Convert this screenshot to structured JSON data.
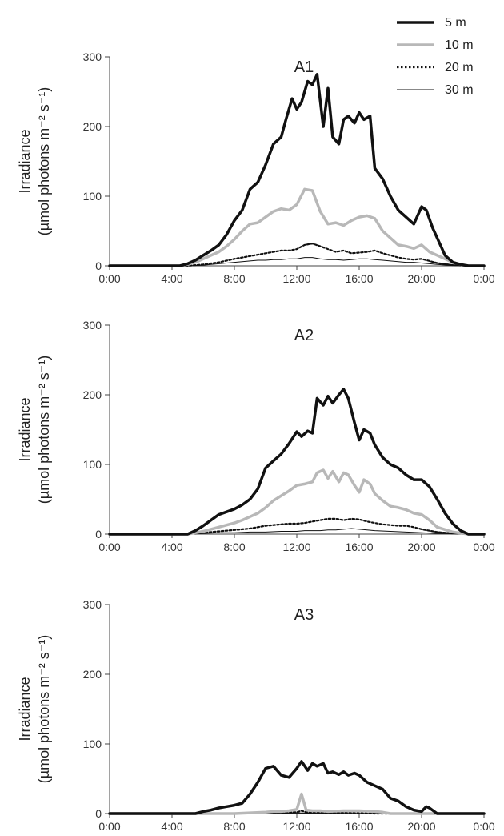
{
  "legend": [
    {
      "label": "5 m",
      "color": "#111111",
      "width": 3.5,
      "dash": ""
    },
    {
      "label": "10 m",
      "color": "#b8b8b8",
      "width": 3.5,
      "dash": ""
    },
    {
      "label": "20 m",
      "color": "#111111",
      "width": 2.2,
      "dash": "2.5,2.5"
    },
    {
      "label": "30 m",
      "color": "#111111",
      "width": 1.0,
      "dash": ""
    }
  ],
  "chart_data": [
    {
      "type": "line",
      "title": "A1",
      "ylabel": [
        "Irradiance",
        "(µmol photons  m⁻² s⁻¹)"
      ],
      "ylim": [
        0,
        300
      ],
      "yticks": [
        "0",
        "100",
        "200",
        "300"
      ],
      "xlim": [
        0,
        24
      ],
      "xticks": [
        "0:00",
        "4:00",
        "8:00",
        "12:00",
        "16:00",
        "20:00",
        "0:00"
      ],
      "series": [
        {
          "name": "5 m",
          "x": [
            0,
            4.5,
            5,
            5.5,
            6,
            6.5,
            7,
            7.5,
            8,
            8.5,
            9,
            9.5,
            10,
            10.5,
            11,
            11.3,
            11.7,
            12,
            12.3,
            12.7,
            13,
            13.3,
            13.7,
            14,
            14.3,
            14.7,
            15,
            15.3,
            15.7,
            16,
            16.3,
            16.7,
            17,
            17.5,
            18,
            18.5,
            19,
            19.5,
            20,
            20.3,
            20.7,
            21,
            21.5,
            22,
            22.5,
            23,
            24
          ],
          "y": [
            0,
            0,
            3,
            8,
            15,
            22,
            30,
            45,
            65,
            80,
            110,
            120,
            145,
            175,
            185,
            210,
            240,
            225,
            235,
            265,
            260,
            275,
            200,
            255,
            185,
            175,
            210,
            215,
            205,
            220,
            210,
            215,
            140,
            125,
            100,
            80,
            70,
            60,
            85,
            80,
            55,
            40,
            15,
            5,
            2,
            0,
            0
          ]
        },
        {
          "name": "10 m",
          "x": [
            0,
            4.5,
            5,
            5.5,
            6,
            6.5,
            7,
            7.5,
            8,
            8.5,
            9,
            9.5,
            10,
            10.5,
            11,
            11.5,
            12,
            12.5,
            13,
            13.5,
            14,
            14.5,
            15,
            15.5,
            16,
            16.5,
            17,
            17.5,
            18,
            18.5,
            19,
            19.5,
            20,
            20.5,
            21,
            21.5,
            22,
            22.5,
            23,
            24
          ],
          "y": [
            0,
            0,
            2,
            5,
            10,
            15,
            20,
            28,
            38,
            50,
            60,
            62,
            70,
            78,
            82,
            80,
            88,
            110,
            108,
            78,
            60,
            62,
            58,
            65,
            70,
            72,
            68,
            50,
            40,
            30,
            28,
            25,
            30,
            20,
            15,
            10,
            5,
            2,
            0,
            0
          ]
        },
        {
          "name": "20 m",
          "x": [
            0,
            5,
            6,
            7,
            8,
            8.5,
            9,
            9.5,
            10,
            10.5,
            11,
            11.5,
            12,
            12.5,
            13,
            13.5,
            14,
            14.5,
            15,
            15.5,
            16,
            16.5,
            17,
            17.5,
            18,
            18.5,
            19,
            19.5,
            20,
            20.5,
            21,
            22,
            23,
            24
          ],
          "y": [
            0,
            0,
            2,
            5,
            10,
            12,
            14,
            16,
            18,
            20,
            22,
            22,
            24,
            30,
            32,
            28,
            24,
            20,
            22,
            18,
            19,
            20,
            22,
            18,
            15,
            12,
            10,
            9,
            10,
            7,
            4,
            1,
            0,
            0
          ]
        },
        {
          "name": "30 m",
          "x": [
            0,
            5,
            6,
            7,
            8,
            8.5,
            9,
            9.5,
            10,
            10.5,
            11,
            11.5,
            12,
            12.5,
            13,
            13.5,
            14,
            14.5,
            15,
            15.5,
            16,
            16.5,
            17,
            17.5,
            18,
            18.5,
            19,
            19.5,
            20,
            20.5,
            21,
            22,
            23,
            24
          ],
          "y": [
            0,
            0,
            1,
            3,
            5,
            6,
            7,
            8,
            8,
            9,
            9,
            10,
            10,
            12,
            12,
            10,
            9,
            9,
            8,
            9,
            10,
            10,
            9,
            8,
            7,
            6,
            5,
            5,
            4,
            3,
            2,
            0.5,
            0,
            0
          ]
        }
      ]
    },
    {
      "type": "line",
      "title": "A2",
      "ylabel": [
        "Irradiance",
        "(µmol photons  m⁻² s⁻¹)"
      ],
      "ylim": [
        0,
        300
      ],
      "yticks": [
        "0",
        "100",
        "200",
        "300"
      ],
      "xlim": [
        0,
        24
      ],
      "xticks": [
        "0:00",
        "4:00",
        "8:00",
        "12:00",
        "16:00",
        "20:00",
        "0:00"
      ],
      "series": [
        {
          "name": "5 m",
          "x": [
            0,
            5,
            5.5,
            6,
            6.5,
            7,
            7.5,
            8,
            8.5,
            9,
            9.5,
            10,
            10.5,
            11,
            11.5,
            12,
            12.3,
            12.7,
            13,
            13.3,
            13.7,
            14,
            14.3,
            14.7,
            15,
            15.3,
            15.7,
            16,
            16.3,
            16.7,
            17,
            17.5,
            18,
            18.5,
            19,
            19.5,
            20,
            20.5,
            21,
            21.5,
            22,
            22.5,
            23,
            24
          ],
          "y": [
            0,
            0,
            5,
            12,
            20,
            28,
            32,
            36,
            42,
            50,
            65,
            95,
            105,
            115,
            130,
            147,
            140,
            148,
            145,
            195,
            185,
            198,
            188,
            200,
            208,
            195,
            160,
            135,
            150,
            145,
            128,
            110,
            100,
            95,
            85,
            78,
            78,
            68,
            50,
            30,
            15,
            5,
            0,
            0
          ]
        },
        {
          "name": "10 m",
          "x": [
            0,
            5,
            6,
            7,
            8,
            8.5,
            9,
            9.5,
            10,
            10.5,
            11,
            11.5,
            12,
            12.5,
            13,
            13.3,
            13.7,
            14,
            14.3,
            14.7,
            15,
            15.3,
            15.7,
            16,
            16.3,
            16.7,
            17,
            17.5,
            18,
            18.5,
            19,
            19.5,
            20,
            20.5,
            21,
            22,
            23,
            24
          ],
          "y": [
            0,
            0,
            4,
            10,
            16,
            20,
            25,
            30,
            38,
            48,
            55,
            62,
            70,
            72,
            75,
            88,
            92,
            80,
            90,
            75,
            88,
            85,
            70,
            60,
            78,
            72,
            58,
            48,
            40,
            38,
            35,
            30,
            28,
            20,
            10,
            3,
            0,
            0
          ]
        },
        {
          "name": "20 m",
          "x": [
            0,
            5,
            6,
            7,
            8,
            9,
            9.5,
            10,
            10.5,
            11,
            11.5,
            12,
            12.5,
            13,
            13.5,
            14,
            14.5,
            15,
            15.5,
            16,
            16.5,
            17,
            17.5,
            18,
            18.5,
            19,
            19.5,
            20,
            21,
            22,
            23,
            24
          ],
          "y": [
            0,
            0,
            2,
            4,
            6,
            8,
            10,
            12,
            13,
            14,
            15,
            15,
            16,
            18,
            20,
            22,
            22,
            20,
            22,
            21,
            18,
            16,
            14,
            13,
            12,
            12,
            10,
            7,
            3,
            1,
            0,
            0
          ]
        },
        {
          "name": "30 m",
          "x": [
            0,
            5,
            6,
            7,
            8,
            9,
            10,
            11,
            12,
            12.5,
            13,
            13.5,
            14,
            14.5,
            15,
            15.5,
            16,
            16.5,
            17,
            18,
            19,
            20,
            21,
            22,
            23,
            24
          ],
          "y": [
            0,
            0,
            1,
            2,
            2,
            3,
            3,
            4,
            4,
            5,
            5,
            5,
            6,
            6,
            7,
            8,
            7,
            6,
            5,
            4,
            3,
            2,
            1,
            0.5,
            0,
            0
          ]
        }
      ]
    },
    {
      "type": "line",
      "title": "A3",
      "ylabel": [
        "Irradiance",
        "(µmol photons  m⁻² s⁻¹)"
      ],
      "ylim": [
        0,
        300
      ],
      "yticks": [
        "0",
        "100",
        "200",
        "300"
      ],
      "xlim": [
        0,
        24
      ],
      "xticks": [
        "0:00",
        "4:00",
        "8:00",
        "12:00",
        "16:00",
        "20:00",
        "0:00"
      ],
      "series": [
        {
          "name": "5 m",
          "x": [
            0,
            5.5,
            6,
            6.5,
            7,
            7.5,
            8,
            8.5,
            9,
            9.5,
            10,
            10.5,
            11,
            11.5,
            12,
            12.3,
            12.7,
            13,
            13.3,
            13.7,
            14,
            14.3,
            14.7,
            15,
            15.3,
            15.7,
            16,
            16.5,
            17,
            17.5,
            18,
            18.5,
            19,
            19.5,
            20,
            20.3,
            20.5,
            21,
            24
          ],
          "y": [
            0,
            0,
            3,
            5,
            8,
            10,
            12,
            15,
            28,
            45,
            65,
            68,
            55,
            52,
            65,
            75,
            62,
            72,
            68,
            72,
            58,
            60,
            56,
            60,
            55,
            58,
            55,
            45,
            40,
            35,
            22,
            18,
            10,
            5,
            3,
            10,
            8,
            0,
            0
          ]
        },
        {
          "name": "10 m",
          "x": [
            0,
            8,
            9,
            10,
            10.5,
            11,
            11.5,
            12,
            12.3,
            12.6,
            13,
            13.5,
            14,
            15,
            16,
            17,
            17.5,
            18,
            24
          ],
          "y": [
            0,
            0,
            1,
            2,
            3,
            3,
            4,
            6,
            28,
            5,
            4,
            4,
            3,
            4,
            4,
            3,
            2,
            0,
            0
          ]
        },
        {
          "name": "20 m",
          "x": [
            0,
            8,
            9,
            10,
            11,
            12,
            12.3,
            12.6,
            13,
            14,
            15,
            16,
            17,
            24
          ],
          "y": [
            0,
            0,
            0.5,
            1,
            1,
            2,
            4,
            2,
            1,
            1,
            1,
            0.5,
            0,
            0
          ]
        },
        {
          "name": "30 m",
          "x": [
            0,
            9,
            10,
            11,
            12,
            13,
            14,
            15,
            24
          ],
          "y": [
            0,
            0,
            0.5,
            0.5,
            1,
            0.5,
            0.5,
            0,
            0
          ]
        }
      ]
    }
  ]
}
